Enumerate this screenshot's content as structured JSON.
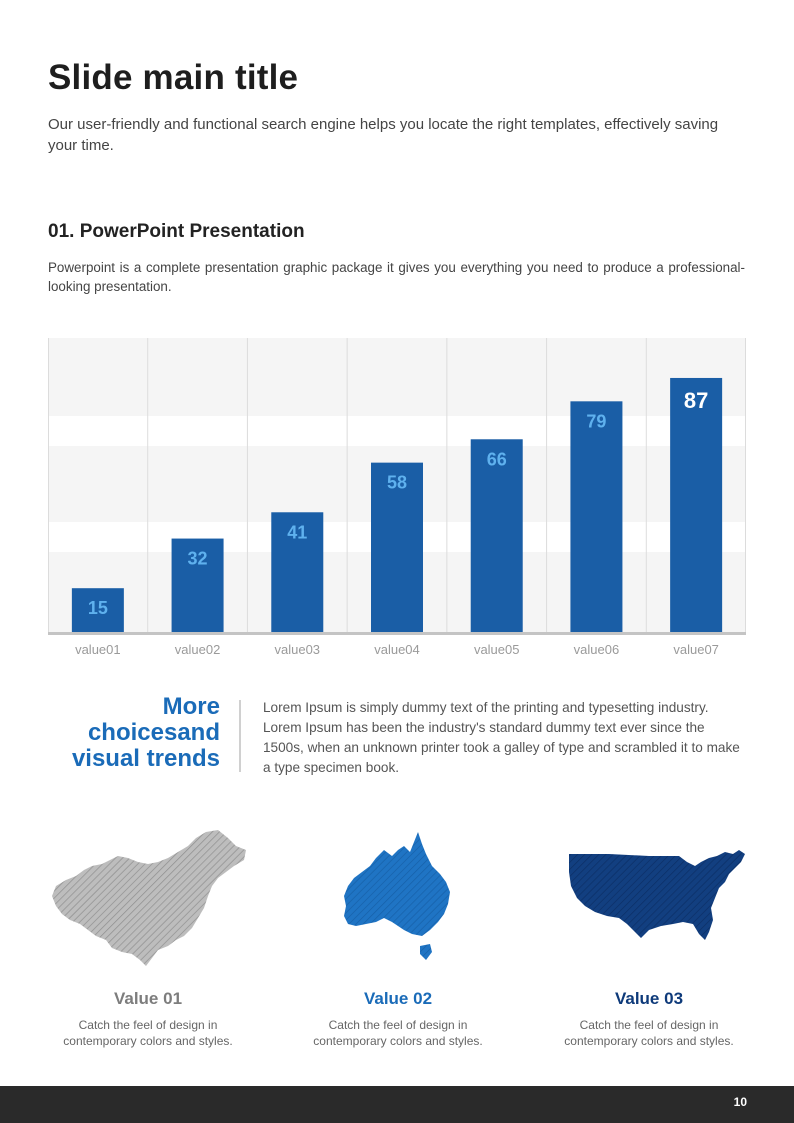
{
  "title": "Slide main title",
  "subtitle": "Our user-friendly and functional search engine helps you locate the right templates, effectively saving your time.",
  "section": {
    "heading": "01. PowerPoint Presentation",
    "body": "Powerpoint is a complete presentation graphic package it gives you everything you need to produce a professional-looking presentation."
  },
  "chart_data": {
    "type": "bar",
    "categories": [
      "value01",
      "value02",
      "value03",
      "value04",
      "value05",
      "value06",
      "value07"
    ],
    "values": [
      15,
      32,
      41,
      58,
      66,
      79,
      87
    ],
    "ylim": [
      0,
      100
    ],
    "grid": true,
    "bar_color": "#1a5ea6"
  },
  "more": {
    "title_lines": [
      "More",
      "choicesand",
      "visual trends"
    ],
    "body": "Lorem Ipsum is simply dummy text of the printing and typesetting industry. Lorem Ipsum has been the industry's standard dummy text ever since the 1500s, when an unknown printer took a galley of type and scrambled it to make a type specimen book."
  },
  "maps": [
    {
      "icon": "china-map-icon",
      "value": "Value 01",
      "desc_line1": "Catch the feel of design in",
      "desc_line2": "contemporary colors and styles.",
      "color": "#7d7d7d"
    },
    {
      "icon": "australia-map-icon",
      "value": "Value 02",
      "desc_line1": "Catch the feel of design in",
      "desc_line2": "contemporary colors and styles.",
      "color": "#1a6bb8"
    },
    {
      "icon": "usa-map-icon",
      "value": "Value 03",
      "desc_line1": "Catch the feel of design in",
      "desc_line2": "contemporary colors and styles.",
      "color": "#0e3a7a"
    }
  ],
  "page_number": "10"
}
